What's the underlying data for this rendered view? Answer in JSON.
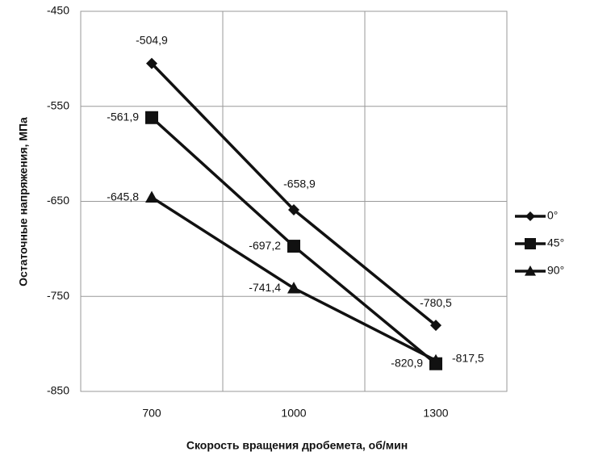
{
  "chart_data": {
    "type": "line",
    "x_label": "Скорость вращения дробемета, об/мин",
    "y_label": "Остаточные напряжения, МПа",
    "categories": [
      "700",
      "1000",
      "1300"
    ],
    "series": [
      {
        "name": "0°",
        "color": "#111111",
        "marker": "diamond",
        "values": [
          -504.9,
          -658.9,
          -780.5
        ],
        "value_labels": [
          "-504,9",
          "-658,9",
          "-780,5"
        ]
      },
      {
        "name": "45°",
        "color": "#111111",
        "marker": "square",
        "values": [
          -561.9,
          -697.2,
          -820.9
        ],
        "value_labels": [
          "-561,9",
          "-697,2",
          "-820,9"
        ]
      },
      {
        "name": "90°",
        "color": "#111111",
        "marker": "triangle",
        "values": [
          -645.8,
          -741.4,
          -817.5
        ],
        "value_labels": [
          "-645,8",
          "-741,4",
          "-817,5"
        ]
      }
    ],
    "ylim": [
      -850,
      -450
    ],
    "yticks": [
      -450,
      -550,
      -650,
      -750,
      -850
    ],
    "grid": true,
    "legend": "right"
  }
}
